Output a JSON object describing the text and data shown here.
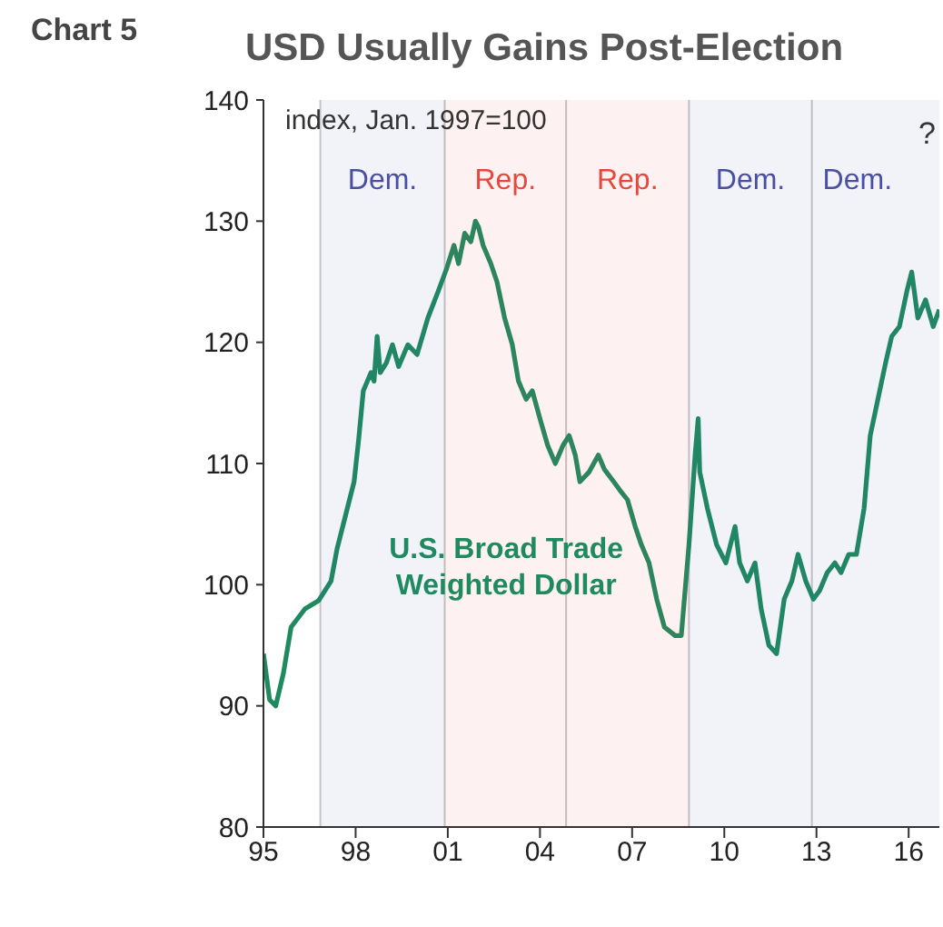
{
  "chart_data": {
    "type": "line",
    "title": "USD Usually Gains Post-Election",
    "ylabel": "index, Jan. 1997=100",
    "annotations": [
      "Chart 5",
      "?"
    ],
    "bands": [
      {
        "axis": "x",
        "from": 1996.85,
        "to": 2000.9,
        "label": "Dem.",
        "color": "#4b4fa3"
      },
      {
        "axis": "x",
        "from": 2000.9,
        "to": 2004.85,
        "label": "Rep.",
        "color": "#e5483c"
      },
      {
        "axis": "x",
        "from": 2004.85,
        "to": 2008.85,
        "label": "Rep.",
        "color": "#e5483c"
      },
      {
        "axis": "x",
        "from": 2008.85,
        "to": 2012.85,
        "label": "Dem.",
        "color": "#4b4fa3"
      },
      {
        "axis": "x",
        "from": 2012.85,
        "to": 2017,
        "label": "Dem.",
        "color": "#4b4fa3"
      }
    ],
    "ref_lines": [
      {
        "axis": "x",
        "value": 1996.85,
        "color": "#c8c8c8"
      },
      {
        "axis": "x",
        "value": 2000.9,
        "color": "#c8c8c8"
      },
      {
        "axis": "x",
        "value": 2004.85,
        "color": "#c8c8c8"
      },
      {
        "axis": "x",
        "value": 2008.85,
        "color": "#c8c8c8"
      },
      {
        "axis": "x",
        "value": 2012.85,
        "color": "#c8c8c8"
      }
    ],
    "series": [
      {
        "name": "U.S. Broad Trade Weighted Dollar",
        "color": "#1f8a5f",
        "x": [
          1995.0,
          1995.2,
          1995.4,
          1995.65,
          1995.9,
          1996.35,
          1996.8,
          1997.2,
          1997.4,
          1997.65,
          1997.95,
          1998.1,
          1998.25,
          1998.5,
          1998.6,
          1998.7,
          1998.8,
          1999.0,
          1999.2,
          1999.4,
          1999.7,
          2000.0,
          2000.35,
          2000.7,
          2000.95,
          2001.2,
          2001.35,
          2001.55,
          2001.75,
          2001.9,
          2002.0,
          2002.15,
          2002.4,
          2002.6,
          2002.85,
          2003.1,
          2003.3,
          2003.55,
          2003.75,
          2004.0,
          2004.25,
          2004.5,
          2004.75,
          2004.95,
          2005.15,
          2005.3,
          2005.6,
          2005.9,
          2006.1,
          2006.4,
          2006.6,
          2006.85,
          2007.1,
          2007.3,
          2007.55,
          2007.8,
          2008.05,
          2008.4,
          2008.6,
          2008.85,
          2009.05,
          2009.15,
          2009.2,
          2009.45,
          2009.75,
          2010.05,
          2010.35,
          2010.5,
          2010.75,
          2011.0,
          2011.2,
          2011.45,
          2011.7,
          2011.95,
          2012.2,
          2012.4,
          2012.65,
          2012.9,
          2013.1,
          2013.35,
          2013.6,
          2013.8,
          2014.05,
          2014.3,
          2014.55,
          2014.75,
          2015.0,
          2015.25,
          2015.45,
          2015.7,
          2015.95,
          2016.1,
          2016.3,
          2016.55,
          2016.8,
          2017.0
        ],
        "values": [
          94.3,
          90.5,
          90,
          92.7,
          96.5,
          98,
          98.7,
          100.3,
          103,
          105.5,
          108.5,
          112,
          116,
          117.5,
          116.8,
          120.5,
          117.5,
          118.3,
          119.8,
          118,
          119.8,
          119,
          122,
          124.3,
          126,
          128,
          126.5,
          129,
          128.3,
          130,
          129.5,
          128,
          126.5,
          125,
          122,
          119.8,
          116.8,
          115.3,
          116,
          113.7,
          111.5,
          110,
          111.5,
          112.3,
          110.7,
          108.5,
          109.3,
          110.7,
          109.5,
          108.5,
          107.8,
          107,
          104.8,
          103.3,
          101.8,
          98.8,
          96.5,
          95.8,
          95.8,
          103.3,
          110.7,
          113.7,
          109.3,
          106.3,
          103.3,
          101.8,
          104.8,
          101.8,
          100.3,
          101.8,
          98,
          95,
          94.3,
          98.8,
          100.3,
          102.5,
          100.3,
          98.8,
          99.5,
          101,
          101.8,
          101,
          102.5,
          102.5,
          106.3,
          112.3,
          115.3,
          118.3,
          120.5,
          121.3,
          124.3,
          125.8,
          122,
          123.5,
          121.3,
          122.7
        ]
      }
    ],
    "xlim": [
      1995,
      2017
    ],
    "xticks": [
      {
        "value": 1995,
        "label": "95"
      },
      {
        "value": 1998,
        "label": "98"
      },
      {
        "value": 2001,
        "label": "01"
      },
      {
        "value": 2004,
        "label": "04"
      },
      {
        "value": 2007,
        "label": "07"
      },
      {
        "value": 2010,
        "label": "10"
      },
      {
        "value": 2013,
        "label": "13"
      },
      {
        "value": 2016,
        "label": "16"
      }
    ],
    "ylim": [
      80,
      140
    ],
    "yticks": [
      80,
      90,
      100,
      110,
      120,
      130,
      140
    ],
    "grid": false,
    "legend": false,
    "marker": "none",
    "line_style": "solid"
  }
}
